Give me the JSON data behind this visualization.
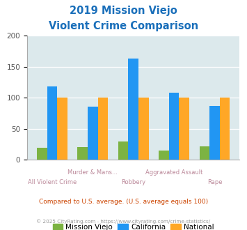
{
  "title_line1": "2019 Mission Viejo",
  "title_line2": "Violent Crime Comparison",
  "categories": [
    "All Violent Crime",
    "Murder & Mans...",
    "Robbery",
    "Aggravated Assault",
    "Rape"
  ],
  "cat_top": [
    "Murder & Mans...",
    "Aggravated Assault"
  ],
  "cat_bottom": [
    "All Violent Crime",
    "Robbery",
    "Rape"
  ],
  "mission_viejo": [
    19,
    21,
    30,
    15,
    22
  ],
  "california": [
    118,
    86,
    163,
    108,
    87
  ],
  "national": [
    100,
    100,
    100,
    100,
    100
  ],
  "color_mv": "#7cb342",
  "color_ca": "#2196f3",
  "color_nat": "#ffa726",
  "bg_color": "#dce9ec",
  "ylim": [
    0,
    200
  ],
  "yticks": [
    0,
    50,
    100,
    150,
    200
  ],
  "title_color": "#1a6fba",
  "subtitle": "Compared to U.S. average. (U.S. average equals 100)",
  "footer": "© 2025 CityRating.com - https://www.cityrating.com/crime-statistics/",
  "subtitle_color": "#cc4400",
  "footer_color": "#999999",
  "label_color": "#bb8899"
}
